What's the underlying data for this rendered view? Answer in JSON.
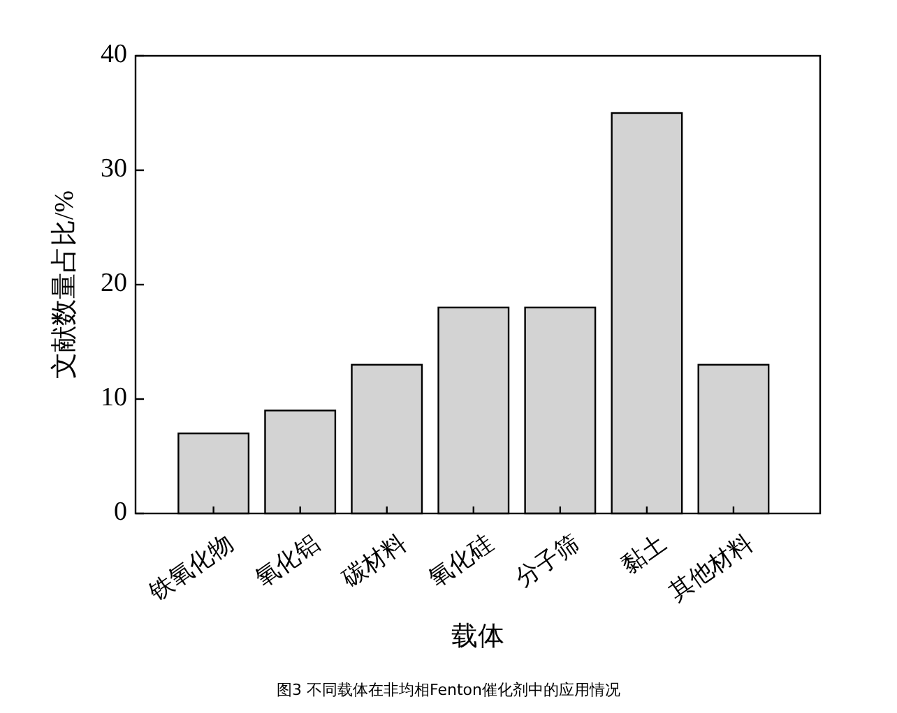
{
  "chart_data": {
    "type": "bar",
    "categories": [
      "铁氧化物",
      "氧化铝",
      "碳材料",
      "氧化硅",
      "分子筛",
      "黏土",
      "其他材料"
    ],
    "values": [
      7,
      9,
      13,
      18,
      18,
      35,
      13
    ],
    "color": "#d3d3d3",
    "xlabel": "载体",
    "ylabel": "文献数量占比/%",
    "ylim": [
      0,
      40
    ],
    "yticks": [
      0,
      10,
      20,
      30,
      40
    ],
    "grid": false,
    "annotations": [
      "图3 不同载体在非均相Fenton催化剂中的应用情况"
    ]
  }
}
